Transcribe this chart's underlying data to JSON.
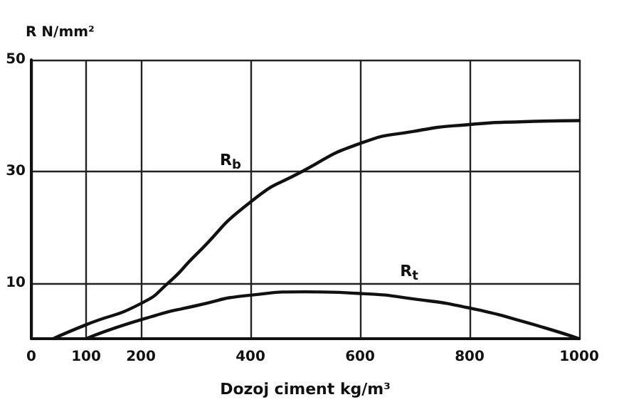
{
  "chart_data": {
    "type": "line",
    "xlabel": "Dozoj ciment kg/m³",
    "ylabel": "R N/mm²",
    "xlim": [
      0,
      1000
    ],
    "xticks": [
      0,
      100,
      200,
      400,
      600,
      800,
      1000
    ],
    "ylim": [
      0,
      50
    ],
    "yticks": [
      10,
      30,
      50
    ],
    "grid": true,
    "legend": false,
    "marker": "none",
    "line_style": "solid",
    "series": [
      {
        "name": "R$_{b}$",
        "color": "#111111",
        "x": [
          40,
          100,
          200,
          250,
          300,
          400,
          495,
          600,
          700,
          800,
          900,
          1000
        ],
        "values": [
          0,
          2.5,
          6.3,
          10,
          15,
          24.5,
          30,
          35,
          37.2,
          38.4,
          38.9,
          39.1
        ]
      },
      {
        "name": "R$_{t}$",
        "color": "#111111",
        "x": [
          100,
          200,
          300,
          400,
          500,
          600,
          700,
          800,
          900,
          1000
        ],
        "values": [
          0,
          3.4,
          5.9,
          7.8,
          8.4,
          8.1,
          7.1,
          5.5,
          3,
          0
        ]
      }
    ]
  }
}
